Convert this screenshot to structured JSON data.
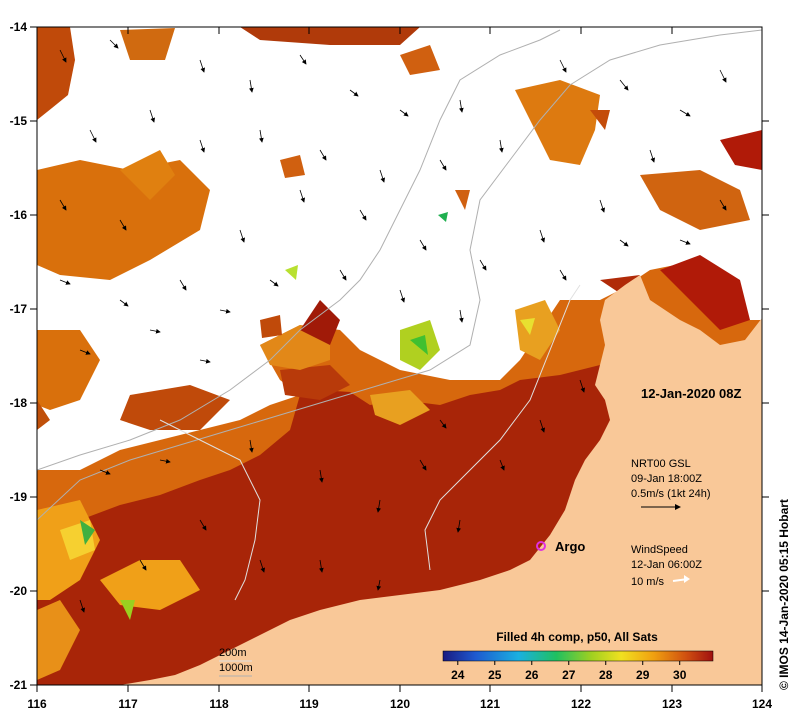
{
  "map": {
    "lon_ticks": [
      "116",
      "117",
      "118",
      "119",
      "120",
      "121",
      "122",
      "123",
      "124"
    ],
    "lat_ticks": [
      "-14",
      "-15",
      "-16",
      "-17",
      "-18",
      "-19",
      "-20",
      "-21"
    ],
    "timestamp": "12-Jan-2020 08Z",
    "gsl": {
      "line1": "NRT00 GSL",
      "line2": "09-Jan 18:00Z",
      "line3": "0.5m/s (1kt 24h)"
    },
    "wind": {
      "line1": "WindSpeed",
      "line2": "12-Jan 06:00Z",
      "line3": "10 m/s"
    },
    "argo_label": "Argo",
    "contours": {
      "c200": "200m",
      "c1000": "1000m"
    },
    "colorbar": {
      "title": "Filled 4h comp, p50, All Sats",
      "ticks": [
        "24",
        "25",
        "26",
        "27",
        "28",
        "29",
        "30"
      ],
      "range": [
        23.6,
        30.9
      ]
    },
    "credit": "© IMOS 14-Jan-2020 05:15 Hobart",
    "colors": {
      "land": "#f9c898",
      "sst_warm": "#b82a0a",
      "sst_mid": "#d96a0a",
      "arrow": "#000000",
      "contour": "#b0b0b0",
      "argo": "#e030e0"
    }
  }
}
